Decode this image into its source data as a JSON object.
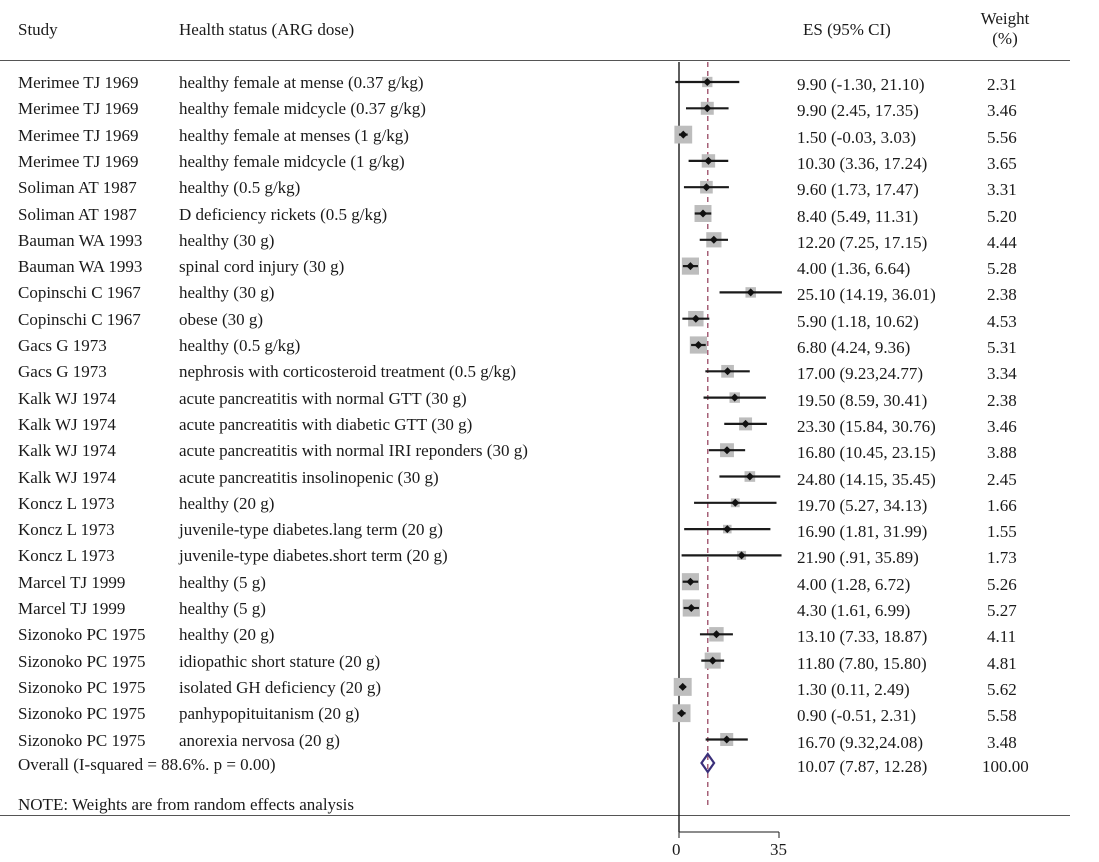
{
  "header": {
    "study": "Study",
    "health": "Health status (ARG dose)",
    "es": "ES (95% CI)",
    "weight_line1": "Weight",
    "weight_line2": "(%)"
  },
  "rows": [
    {
      "study": "Merimee TJ 1969",
      "status": "healthy female at mense (0.37 g/kg)",
      "es": "9.90 (-1.30, 21.10)",
      "weight": "2.31"
    },
    {
      "study": "Merimee TJ 1969",
      "status": "healthy female midcycle (0.37 g/kg)",
      "es": "9.90 (2.45, 17.35)",
      "weight": "3.46"
    },
    {
      "study": "Merimee TJ 1969",
      "status": "healthy female at menses (1 g/kg)",
      "es": "1.50 (-0.03, 3.03)",
      "weight": "5.56"
    },
    {
      "study": "Merimee TJ 1969",
      "status": "healthy female midcycle (1 g/kg)",
      "es": "10.30 (3.36, 17.24)",
      "weight": "3.65"
    },
    {
      "study": "Soliman AT 1987",
      "status": "healthy (0.5 g/kg)",
      "es": "9.60 (1.73, 17.47)",
      "weight": "3.31"
    },
    {
      "study": "Soliman AT 1987",
      "status": "D deficiency rickets (0.5 g/kg)",
      "es": "8.40 (5.49, 11.31)",
      "weight": "5.20"
    },
    {
      "study": "Bauman WA 1993",
      "status": "healthy (30 g)",
      "es": "12.20 (7.25, 17.15)",
      "weight": "4.44"
    },
    {
      "study": "Bauman WA 1993",
      "status": "spinal cord injury (30 g)",
      "es": "4.00 (1.36, 6.64)",
      "weight": "5.28"
    },
    {
      "study": "Copinschi C 1967",
      "status": "healthy (30 g)",
      "es": "25.10 (14.19, 36.01)",
      "weight": "2.38"
    },
    {
      "study": "Copinschi C 1967",
      "status": "obese (30 g)",
      "es": "5.90 (1.18, 10.62)",
      "weight": "4.53"
    },
    {
      "study": "Gacs G 1973",
      "status": "healthy (0.5 g/kg)",
      "es": "6.80 (4.24, 9.36)",
      "weight": "5.31"
    },
    {
      "study": "Gacs G 1973",
      "status": "nephrosis with corticosteroid treatment (0.5 g/kg)",
      "es": "17.00 (9.23,24.77)",
      "weight": "3.34"
    },
    {
      "study": "Kalk WJ 1974",
      "status": "acute pancreatitis with normal GTT (30 g)",
      "es": "19.50 (8.59, 30.41)",
      "weight": "2.38"
    },
    {
      "study": "Kalk WJ 1974",
      "status": "acute pancreatitis with diabetic GTT (30 g)",
      "es": "23.30 (15.84, 30.76)",
      "weight": "3.46"
    },
    {
      "study": "Kalk WJ 1974",
      "status": "acute pancreatitis with normal IRI reponders (30 g)",
      "es": "16.80 (10.45, 23.15)",
      "weight": "3.88"
    },
    {
      "study": "Kalk WJ 1974",
      "status": "acute pancreatitis insolinopenic (30 g)",
      "es": "24.80 (14.15, 35.45)",
      "weight": "2.45"
    },
    {
      "study": "Koncz L 1973",
      "status": "healthy (20 g)",
      "es": "19.70 (5.27, 34.13)",
      "weight": "1.66"
    },
    {
      "study": "Koncz L 1973",
      "status": "juvenile-type diabetes.lang term (20 g)",
      "es": "16.90 (1.81, 31.99)",
      "weight": "1.55"
    },
    {
      "study": "Koncz L 1973",
      "status": "juvenile-type diabetes.short term (20 g)",
      "es": "21.90 (.91, 35.89)",
      "weight": "1.73"
    },
    {
      "study": "Marcel TJ 1999",
      "status": "healthy (5 g)",
      "es": "4.00 (1.28, 6.72)",
      "weight": "5.26"
    },
    {
      "study": "Marcel TJ 1999",
      "status": "healthy (5 g)",
      "es": "4.30 (1.61, 6.99)",
      "weight": "5.27"
    },
    {
      "study": "Sizonoko PC 1975",
      "status": "healthy (20 g)",
      "es": "13.10 (7.33, 18.87)",
      "weight": "4.11"
    },
    {
      "study": "Sizonoko PC 1975",
      "status": "idiopathic short stature (20 g)",
      "es": "11.80 (7.80, 15.80)",
      "weight": "4.81"
    },
    {
      "study": "Sizonoko PC 1975",
      "status": "isolated GH deficiency (20 g)",
      "es": "1.30 (0.11, 2.49)",
      "weight": "5.62"
    },
    {
      "study": "Sizonoko PC 1975",
      "status": "panhypopituitanism (20 g)",
      "es": "0.90 (-0.51, 2.31)",
      "weight": "5.58"
    },
    {
      "study": "Sizonoko PC 1975",
      "status": "anorexia nervosa (20 g)",
      "es": "16.70 (9.32,24.08)",
      "weight": "3.48"
    }
  ],
  "overall": {
    "label": "Overall (I-squared = 88.6%. p = 0.00)",
    "es": "10.07 (7.87, 12.28)",
    "weight": "100.00"
  },
  "note": "NOTE: Weights are from random effects analysis",
  "chart_data": {
    "type": "forest",
    "x_ticks": [
      "0",
      "35"
    ],
    "null_line": 0,
    "overall_estimate": 10.07,
    "overall_ci": [
      7.87,
      12.28
    ],
    "estimates": [
      {
        "es": 9.9,
        "lo": -1.3,
        "hi": 21.1,
        "w": 2.31
      },
      {
        "es": 9.9,
        "lo": 2.45,
        "hi": 17.35,
        "w": 3.46
      },
      {
        "es": 1.5,
        "lo": -0.03,
        "hi": 3.03,
        "w": 5.56
      },
      {
        "es": 10.3,
        "lo": 3.36,
        "hi": 17.24,
        "w": 3.65
      },
      {
        "es": 9.6,
        "lo": 1.73,
        "hi": 17.47,
        "w": 3.31
      },
      {
        "es": 8.4,
        "lo": 5.49,
        "hi": 11.31,
        "w": 5.2
      },
      {
        "es": 12.2,
        "lo": 7.25,
        "hi": 17.15,
        "w": 4.44
      },
      {
        "es": 4.0,
        "lo": 1.36,
        "hi": 6.64,
        "w": 5.28
      },
      {
        "es": 25.1,
        "lo": 14.19,
        "hi": 36.01,
        "w": 2.38
      },
      {
        "es": 5.9,
        "lo": 1.18,
        "hi": 10.62,
        "w": 4.53
      },
      {
        "es": 6.8,
        "lo": 4.24,
        "hi": 9.36,
        "w": 5.31
      },
      {
        "es": 17.0,
        "lo": 9.23,
        "hi": 24.77,
        "w": 3.34
      },
      {
        "es": 19.5,
        "lo": 8.59,
        "hi": 30.41,
        "w": 2.38
      },
      {
        "es": 23.3,
        "lo": 15.84,
        "hi": 30.76,
        "w": 3.46
      },
      {
        "es": 16.8,
        "lo": 10.45,
        "hi": 23.15,
        "w": 3.88
      },
      {
        "es": 24.8,
        "lo": 14.15,
        "hi": 35.45,
        "w": 2.45
      },
      {
        "es": 19.7,
        "lo": 5.27,
        "hi": 34.13,
        "w": 1.66
      },
      {
        "es": 16.9,
        "lo": 1.81,
        "hi": 31.99,
        "w": 1.55
      },
      {
        "es": 21.9,
        "lo": 0.91,
        "hi": 35.89,
        "w": 1.73
      },
      {
        "es": 4.0,
        "lo": 1.28,
        "hi": 6.72,
        "w": 5.26
      },
      {
        "es": 4.3,
        "lo": 1.61,
        "hi": 6.99,
        "w": 5.27
      },
      {
        "es": 13.1,
        "lo": 7.33,
        "hi": 18.87,
        "w": 4.11
      },
      {
        "es": 11.8,
        "lo": 7.8,
        "hi": 15.8,
        "w": 4.81
      },
      {
        "es": 1.3,
        "lo": 0.11,
        "hi": 2.49,
        "w": 5.62
      },
      {
        "es": 0.9,
        "lo": -0.51,
        "hi": 2.31,
        "w": 5.58
      },
      {
        "es": 16.7,
        "lo": 9.32,
        "hi": 24.08,
        "w": 3.48
      }
    ],
    "colors": {
      "box": "#bdbdbd",
      "ci_line": "#1a1a1a",
      "overall_diamond": "#3a2f7a",
      "overall_line": "#a0556e"
    }
  }
}
